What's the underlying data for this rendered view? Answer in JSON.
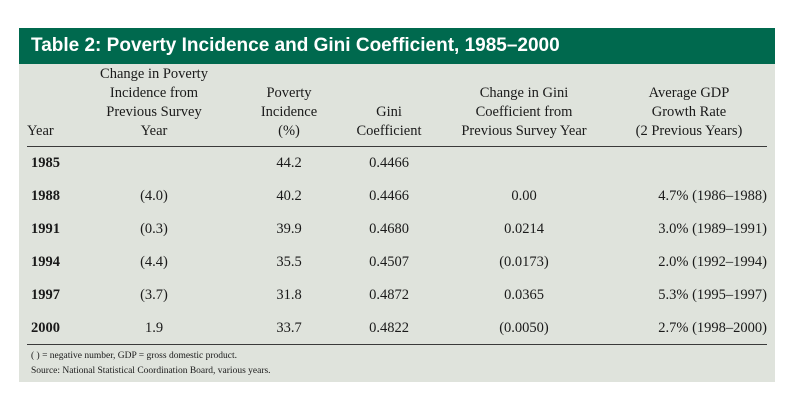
{
  "table": {
    "title": "Table 2: Poverty Incidence and Gini Coefficient, 1985–2000",
    "headers": {
      "year": [
        "Year"
      ],
      "poverty_change": [
        "Change in Poverty",
        "Incidence from",
        "Previous Survey",
        "Year"
      ],
      "poverty_incidence": [
        "Poverty",
        "Incidence",
        "(%)"
      ],
      "gini": [
        "Gini",
        "Coefficient"
      ],
      "gini_change": [
        "Change in Gini",
        "Coefficient from",
        "Previous Survey Year"
      ],
      "gdp_growth": [
        "Average GDP",
        "Growth Rate",
        "(2 Previous Years)"
      ]
    },
    "rows": [
      {
        "year": "1985",
        "poverty_change": "",
        "poverty_incidence": "44.2",
        "gini": "0.4466",
        "gini_change": "",
        "gdp_growth": ""
      },
      {
        "year": "1988",
        "poverty_change": "(4.0)",
        "poverty_incidence": "40.2",
        "gini": "0.4466",
        "gini_change": "0.00",
        "gdp_growth": "4.7% (1986–1988)"
      },
      {
        "year": "1991",
        "poverty_change": "(0.3)",
        "poverty_incidence": "39.9",
        "gini": "0.4680",
        "gini_change": "0.0214",
        "gdp_growth": "3.0% (1989–1991)"
      },
      {
        "year": "1994",
        "poverty_change": "(4.4)",
        "poverty_incidence": "35.5",
        "gini": "0.4507",
        "gini_change": "(0.0173)",
        "gdp_growth": "2.0% (1992–1994)"
      },
      {
        "year": "1997",
        "poverty_change": "(3.7)",
        "poverty_incidence": "31.8",
        "gini": "0.4872",
        "gini_change": "0.0365",
        "gdp_growth": "5.3% (1995–1997)"
      },
      {
        "year": "2000",
        "poverty_change": "1.9",
        "poverty_incidence": "33.7",
        "gini": "0.4822",
        "gini_change": "(0.0050)",
        "gdp_growth": "2.7% (1998–2000)"
      }
    ],
    "notes": [
      "( ) = negative number, GDP = gross domestic product.",
      "Source: National Statistical Coordination Board, various years."
    ],
    "colors": {
      "title_bar": "#00694e",
      "panel": "#dfe3dc"
    }
  }
}
